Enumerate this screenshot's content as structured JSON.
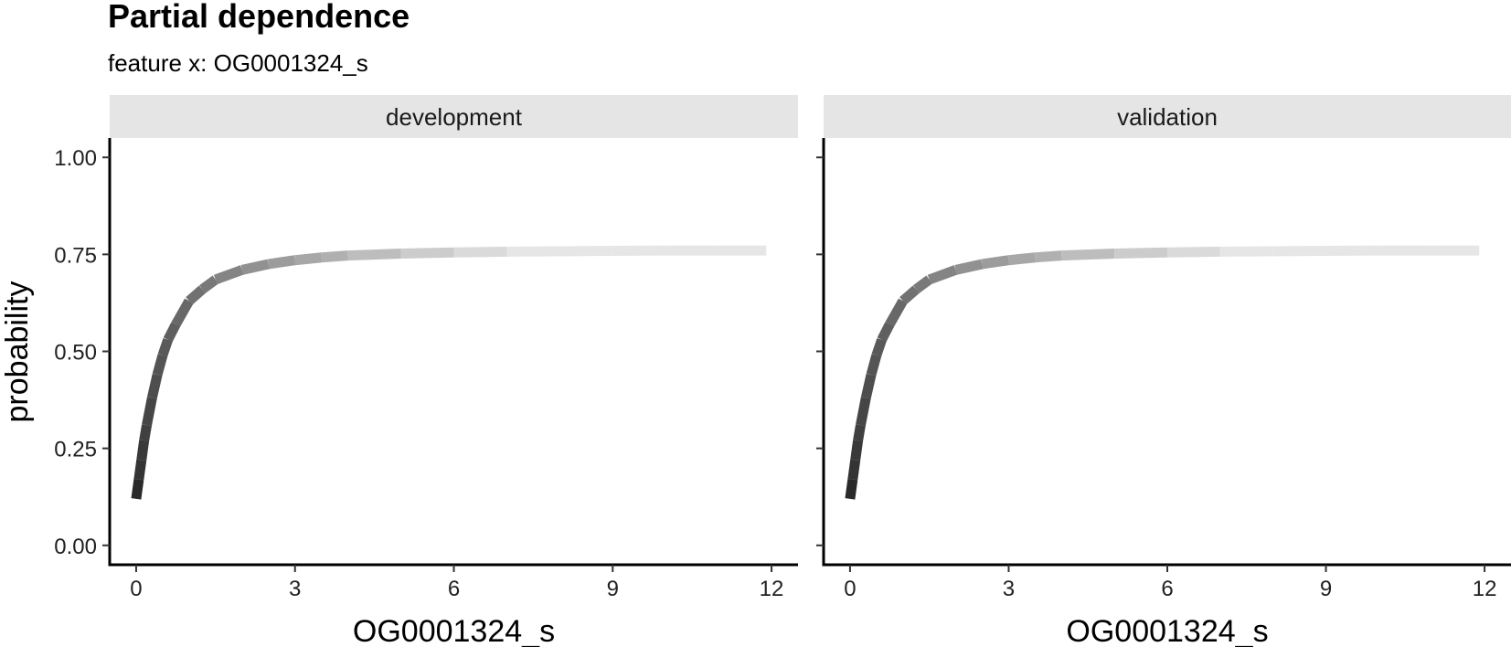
{
  "chart_data": {
    "type": "line",
    "title": "Partial dependence",
    "subtitle": "feature x: OG0001324_s",
    "xlabel": "OG0001324_s",
    "ylabel": "probability",
    "xlim": [
      -0.5,
      12.5
    ],
    "ylim": [
      -0.05,
      1.05
    ],
    "x_ticks": [
      0,
      3,
      6,
      9,
      12
    ],
    "x_tick_labels": [
      "0",
      "3",
      "6",
      "9",
      "12"
    ],
    "y_ticks": [
      0,
      0.25,
      0.5,
      0.75,
      1
    ],
    "y_tick_labels": [
      "0.00",
      "0.25",
      "0.50",
      "0.75",
      "1.00"
    ],
    "grid": false,
    "legend": "none",
    "line_color_start": "#1a1a1a",
    "line_color_end": "#e6e6e6",
    "panels": [
      {
        "strip": "development",
        "x": [
          0,
          0.05,
          0.1,
          0.15,
          0.2,
          0.3,
          0.4,
          0.5,
          0.6,
          0.75,
          1.0,
          1.25,
          1.5,
          2.0,
          2.5,
          3.0,
          3.5,
          4.0,
          5.0,
          6.0,
          7.0,
          8.0,
          9.0,
          10.0,
          11.0,
          11.9
        ],
        "y": [
          0.12,
          0.17,
          0.22,
          0.27,
          0.31,
          0.38,
          0.44,
          0.49,
          0.53,
          0.57,
          0.63,
          0.66,
          0.685,
          0.71,
          0.725,
          0.735,
          0.742,
          0.747,
          0.752,
          0.755,
          0.757,
          0.758,
          0.759,
          0.76,
          0.76,
          0.76
        ]
      },
      {
        "strip": "validation",
        "x": [
          0,
          0.05,
          0.1,
          0.15,
          0.2,
          0.3,
          0.4,
          0.5,
          0.6,
          0.75,
          1.0,
          1.25,
          1.5,
          2.0,
          2.5,
          3.0,
          3.5,
          4.0,
          5.0,
          6.0,
          7.0,
          8.0,
          9.0,
          10.0,
          11.0,
          11.9
        ],
        "y": [
          0.12,
          0.17,
          0.22,
          0.27,
          0.31,
          0.38,
          0.44,
          0.49,
          0.53,
          0.57,
          0.63,
          0.66,
          0.685,
          0.71,
          0.725,
          0.735,
          0.742,
          0.747,
          0.752,
          0.755,
          0.757,
          0.758,
          0.759,
          0.76,
          0.76,
          0.76
        ]
      }
    ]
  }
}
